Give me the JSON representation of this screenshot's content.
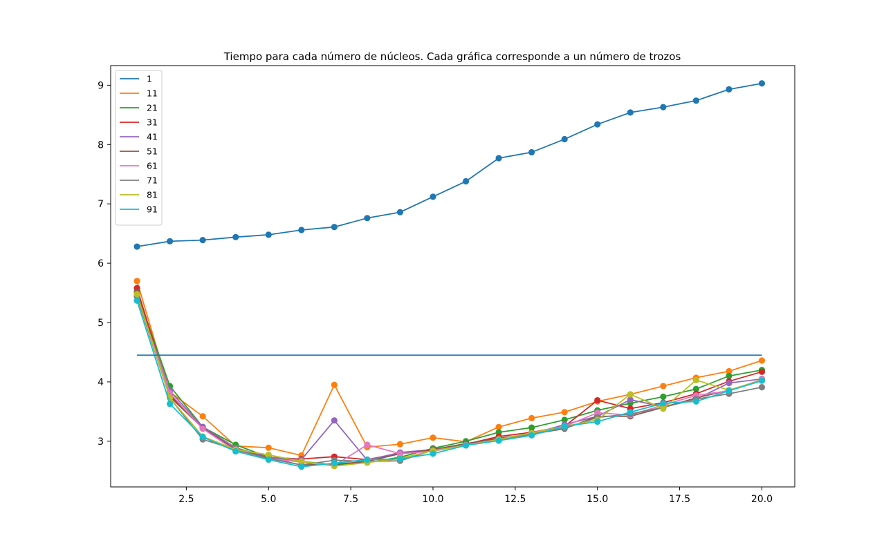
{
  "chart_data": {
    "type": "line",
    "title": "Tiempo para cada número de núcleos. Cada gráfica corresponde a un número de trozos",
    "xlabel": "",
    "ylabel": "",
    "xlim": [
      0.2,
      21.0
    ],
    "ylim": [
      2.23,
      9.33
    ],
    "xticks": [
      2.5,
      5.0,
      7.5,
      10.0,
      12.5,
      15.0,
      17.5,
      20.0
    ],
    "xtick_labels": [
      "2.5",
      "5.0",
      "7.5",
      "10.0",
      "12.5",
      "15.0",
      "17.5",
      "20.0"
    ],
    "yticks": [
      3,
      4,
      5,
      6,
      7,
      8,
      9
    ],
    "ytick_labels": [
      "3",
      "4",
      "5",
      "6",
      "7",
      "8",
      "9"
    ],
    "grid": false,
    "legend_position": "top-left",
    "x": [
      1,
      2,
      3,
      4,
      5,
      6,
      7,
      8,
      9,
      10,
      11,
      12,
      13,
      14,
      15,
      16,
      17,
      18,
      19,
      20
    ],
    "series": [
      {
        "name": "1",
        "color": "#1f77b4",
        "values": [
          6.28,
          6.37,
          6.39,
          6.44,
          6.48,
          6.56,
          6.61,
          6.76,
          6.86,
          7.12,
          7.38,
          7.77,
          7.87,
          8.09,
          8.34,
          8.54,
          8.63,
          8.74,
          8.93,
          9.03
        ]
      },
      {
        "name": "11",
        "color": "#ff7f0e",
        "values": [
          5.7,
          3.83,
          3.42,
          2.92,
          2.89,
          2.76,
          3.95,
          2.9,
          2.95,
          3.06,
          2.99,
          3.24,
          3.39,
          3.49,
          3.67,
          3.79,
          3.93,
          4.07,
          4.18,
          4.36
        ]
      },
      {
        "name": "21",
        "color": "#2ca02c",
        "values": [
          5.51,
          3.93,
          3.24,
          2.94,
          2.73,
          2.66,
          2.6,
          2.64,
          2.73,
          2.88,
          3.0,
          3.15,
          3.23,
          3.36,
          3.52,
          3.64,
          3.75,
          3.88,
          4.1,
          4.2
        ]
      },
      {
        "name": "31",
        "color": "#d62728",
        "values": [
          5.58,
          3.78,
          3.23,
          2.86,
          2.73,
          2.7,
          2.74,
          2.69,
          2.8,
          2.85,
          2.95,
          3.08,
          3.15,
          3.25,
          3.69,
          3.55,
          3.65,
          3.8,
          4.01,
          4.17
        ]
      },
      {
        "name": "41",
        "color": "#9467bd",
        "values": [
          5.45,
          3.85,
          3.24,
          2.89,
          2.73,
          2.69,
          3.35,
          2.68,
          2.81,
          2.86,
          2.95,
          3.05,
          3.12,
          3.28,
          3.42,
          3.7,
          3.58,
          3.71,
          3.98,
          4.05
        ]
      },
      {
        "name": "51",
        "color": "#8c564b",
        "values": [
          5.52,
          3.75,
          3.22,
          2.86,
          2.72,
          2.6,
          2.61,
          2.66,
          2.79,
          2.86,
          2.96,
          3.05,
          3.12,
          3.21,
          3.42,
          3.42,
          3.57,
          3.73,
          3.86,
          4.03
        ]
      },
      {
        "name": "61",
        "color": "#e377c2",
        "values": [
          5.44,
          3.81,
          3.21,
          2.84,
          2.71,
          2.65,
          2.59,
          2.94,
          2.79,
          2.83,
          2.94,
          3.03,
          3.14,
          3.25,
          3.48,
          3.44,
          3.61,
          3.77,
          3.85,
          4.04
        ]
      },
      {
        "name": "71",
        "color": "#7f7f7f",
        "values": [
          5.44,
          3.73,
          3.03,
          2.86,
          2.71,
          2.6,
          2.68,
          2.66,
          2.67,
          2.85,
          2.93,
          3.02,
          3.12,
          3.22,
          3.4,
          3.46,
          3.57,
          3.71,
          3.8,
          3.91
        ]
      },
      {
        "name": "81",
        "color": "#bcbd22",
        "values": [
          5.48,
          3.73,
          3.08,
          2.86,
          2.77,
          2.66,
          2.58,
          2.64,
          2.71,
          2.84,
          2.93,
          3.03,
          3.14,
          3.25,
          3.36,
          3.79,
          3.55,
          4.03,
          3.86,
          4.03
        ]
      },
      {
        "name": "91",
        "color": "#17becf",
        "values": [
          5.37,
          3.63,
          3.07,
          2.83,
          2.69,
          2.57,
          2.63,
          2.69,
          2.7,
          2.79,
          2.93,
          3.01,
          3.1,
          3.25,
          3.33,
          3.49,
          3.64,
          3.67,
          3.85,
          4.02
        ]
      },
      {
        "name": "",
        "color": "#1f77b4",
        "type": "hline",
        "y": 4.45,
        "x_range": [
          1,
          20
        ]
      }
    ]
  }
}
